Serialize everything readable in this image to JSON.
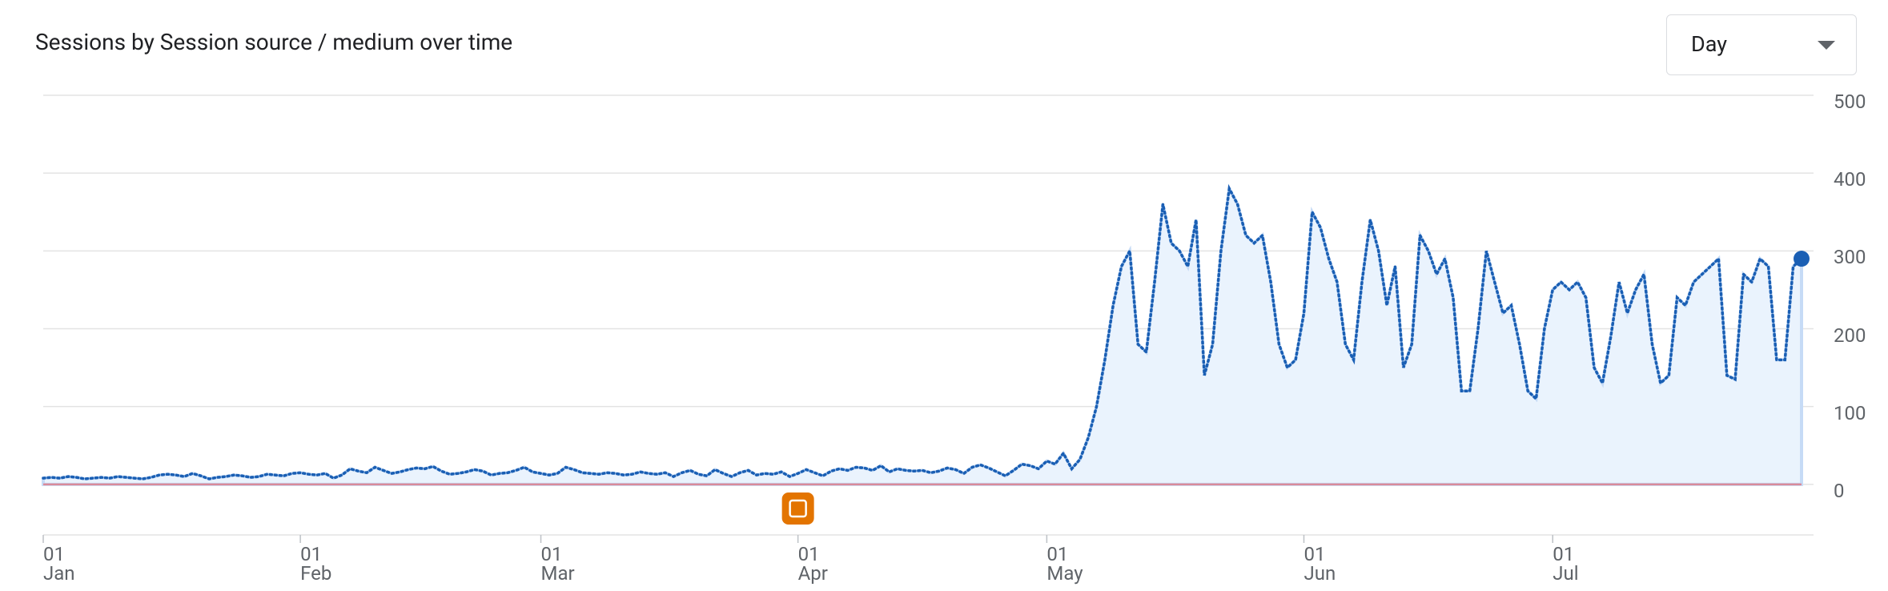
{
  "title": "Sessions by Session source / medium over time",
  "dropdown": "Day",
  "chart_data": {
    "type": "area",
    "x": [
      "01 Jan",
      "02 Jan",
      "03 Jan",
      "04 Jan",
      "05 Jan",
      "06 Jan",
      "07 Jan",
      "08 Jan",
      "09 Jan",
      "10 Jan",
      "11 Jan",
      "12 Jan",
      "13 Jan",
      "14 Jan",
      "15 Jan",
      "16 Jan",
      "17 Jan",
      "18 Jan",
      "19 Jan",
      "20 Jan",
      "21 Jan",
      "22 Jan",
      "23 Jan",
      "24 Jan",
      "25 Jan",
      "26 Jan",
      "27 Jan",
      "28 Jan",
      "29 Jan",
      "30 Jan",
      "31 Jan",
      "01 Feb",
      "02 Feb",
      "03 Feb",
      "04 Feb",
      "05 Feb",
      "06 Feb",
      "07 Feb",
      "08 Feb",
      "09 Feb",
      "10 Feb",
      "11 Feb",
      "12 Feb",
      "13 Feb",
      "14 Feb",
      "15 Feb",
      "16 Feb",
      "17 Feb",
      "18 Feb",
      "19 Feb",
      "20 Feb",
      "21 Feb",
      "22 Feb",
      "23 Feb",
      "24 Feb",
      "25 Feb",
      "26 Feb",
      "27 Feb",
      "28 Feb",
      "29 Feb",
      "01 Mar",
      "02 Mar",
      "03 Mar",
      "04 Mar",
      "05 Mar",
      "06 Mar",
      "07 Mar",
      "08 Mar",
      "09 Mar",
      "10 Mar",
      "11 Mar",
      "12 Mar",
      "13 Mar",
      "14 Mar",
      "15 Mar",
      "16 Mar",
      "17 Mar",
      "18 Mar",
      "19 Mar",
      "20 Mar",
      "21 Mar",
      "22 Mar",
      "23 Mar",
      "24 Mar",
      "25 Mar",
      "26 Mar",
      "27 Mar",
      "28 Mar",
      "29 Mar",
      "30 Mar",
      "31 Mar",
      "01 Apr",
      "02 Apr",
      "03 Apr",
      "04 Apr",
      "05 Apr",
      "06 Apr",
      "07 Apr",
      "08 Apr",
      "09 Apr",
      "10 Apr",
      "11 Apr",
      "12 Apr",
      "13 Apr",
      "14 Apr",
      "15 Apr",
      "16 Apr",
      "17 Apr",
      "18 Apr",
      "19 Apr",
      "20 Apr",
      "21 Apr",
      "22 Apr",
      "23 Apr",
      "24 Apr",
      "25 Apr",
      "26 Apr",
      "27 Apr",
      "28 Apr",
      "29 Apr",
      "30 Apr",
      "01 May",
      "02 May",
      "03 May",
      "04 May",
      "05 May",
      "06 May",
      "07 May",
      "08 May",
      "09 May",
      "10 May",
      "11 May",
      "12 May",
      "13 May",
      "14 May",
      "15 May",
      "16 May",
      "17 May",
      "18 May",
      "19 May",
      "20 May",
      "21 May",
      "22 May",
      "23 May",
      "24 May",
      "25 May",
      "26 May",
      "27 May",
      "28 May",
      "29 May",
      "30 May",
      "31 May",
      "01 Jun",
      "02 Jun",
      "03 Jun",
      "04 Jun",
      "05 Jun",
      "06 Jun",
      "07 Jun",
      "08 Jun",
      "09 Jun",
      "10 Jun",
      "11 Jun",
      "12 Jun",
      "13 Jun",
      "14 Jun",
      "15 Jun",
      "16 Jun",
      "17 Jun",
      "18 Jun",
      "19 Jun",
      "20 Jun",
      "21 Jun",
      "22 Jun",
      "23 Jun",
      "24 Jun",
      "25 Jun",
      "26 Jun",
      "27 Jun",
      "28 Jun",
      "29 Jun",
      "30 Jun",
      "01 Jul",
      "02 Jul",
      "03 Jul",
      "04 Jul",
      "05 Jul",
      "06 Jul",
      "07 Jul",
      "08 Jul",
      "09 Jul",
      "10 Jul",
      "11 Jul",
      "12 Jul",
      "13 Jul",
      "14 Jul",
      "15 Jul",
      "16 Jul",
      "17 Jul",
      "18 Jul",
      "19 Jul",
      "20 Jul",
      "21 Jul",
      "22 Jul",
      "23 Jul",
      "24 Jul",
      "25 Jul",
      "26 Jul",
      "27 Jul",
      "28 Jul",
      "29 Jul",
      "30 Jul",
      "31 Jul"
    ],
    "values": [
      8,
      9,
      8,
      10,
      9,
      7,
      8,
      9,
      8,
      10,
      9,
      8,
      7,
      9,
      12,
      13,
      12,
      10,
      14,
      11,
      7,
      9,
      10,
      12,
      11,
      9,
      10,
      13,
      12,
      11,
      14,
      15,
      13,
      12,
      14,
      8,
      12,
      20,
      17,
      15,
      22,
      18,
      14,
      16,
      19,
      21,
      20,
      23,
      17,
      13,
      14,
      16,
      19,
      17,
      12,
      14,
      15,
      18,
      22,
      16,
      14,
      12,
      14,
      22,
      19,
      15,
      14,
      13,
      15,
      14,
      12,
      13,
      16,
      14,
      13,
      15,
      10,
      15,
      18,
      13,
      11,
      19,
      14,
      10,
      15,
      18,
      12,
      14,
      13,
      16,
      10,
      14,
      19,
      15,
      11,
      17,
      20,
      18,
      22,
      21,
      18,
      24,
      16,
      20,
      18,
      17,
      18,
      15,
      17,
      21,
      19,
      14,
      22,
      25,
      21,
      16,
      11,
      18,
      26,
      24,
      20,
      30,
      26,
      40,
      20,
      32,
      60,
      100,
      160,
      230,
      280,
      300,
      180,
      170,
      260,
      360,
      310,
      300,
      280,
      340,
      140,
      180,
      300,
      380,
      360,
      320,
      310,
      320,
      260,
      180,
      150,
      160,
      220,
      350,
      330,
      290,
      260,
      180,
      160,
      260,
      340,
      300,
      230,
      280,
      150,
      180,
      320,
      300,
      270,
      290,
      240,
      120,
      120,
      200,
      300,
      260,
      220,
      230,
      180,
      120,
      110,
      200,
      250,
      260,
      250,
      260,
      240,
      150,
      130,
      190,
      260,
      220,
      250,
      270,
      180,
      130,
      140,
      240,
      230,
      260,
      270,
      280,
      290,
      140,
      135,
      270,
      260,
      290,
      280,
      160,
      160,
      280,
      290
    ],
    "color": "#1a5fb4",
    "fill": "#eaf3fd",
    "ylim": [
      -65,
      500
    ],
    "yticks": [
      0,
      100,
      200,
      300,
      400,
      500
    ],
    "xticks": [
      {
        "value": "01 Jan",
        "label": "01\nJan"
      },
      {
        "value": "01 Feb",
        "label": "01\nFeb"
      },
      {
        "value": "01 Mar",
        "label": "01\nMar"
      },
      {
        "value": "01 Apr",
        "label": "01\nApr"
      },
      {
        "value": "01 May",
        "label": "01\nMay"
      },
      {
        "value": "01 Jun",
        "label": "01\nJun"
      },
      {
        "value": "01 Jul",
        "label": "01\nJul"
      }
    ],
    "grid": true
  }
}
